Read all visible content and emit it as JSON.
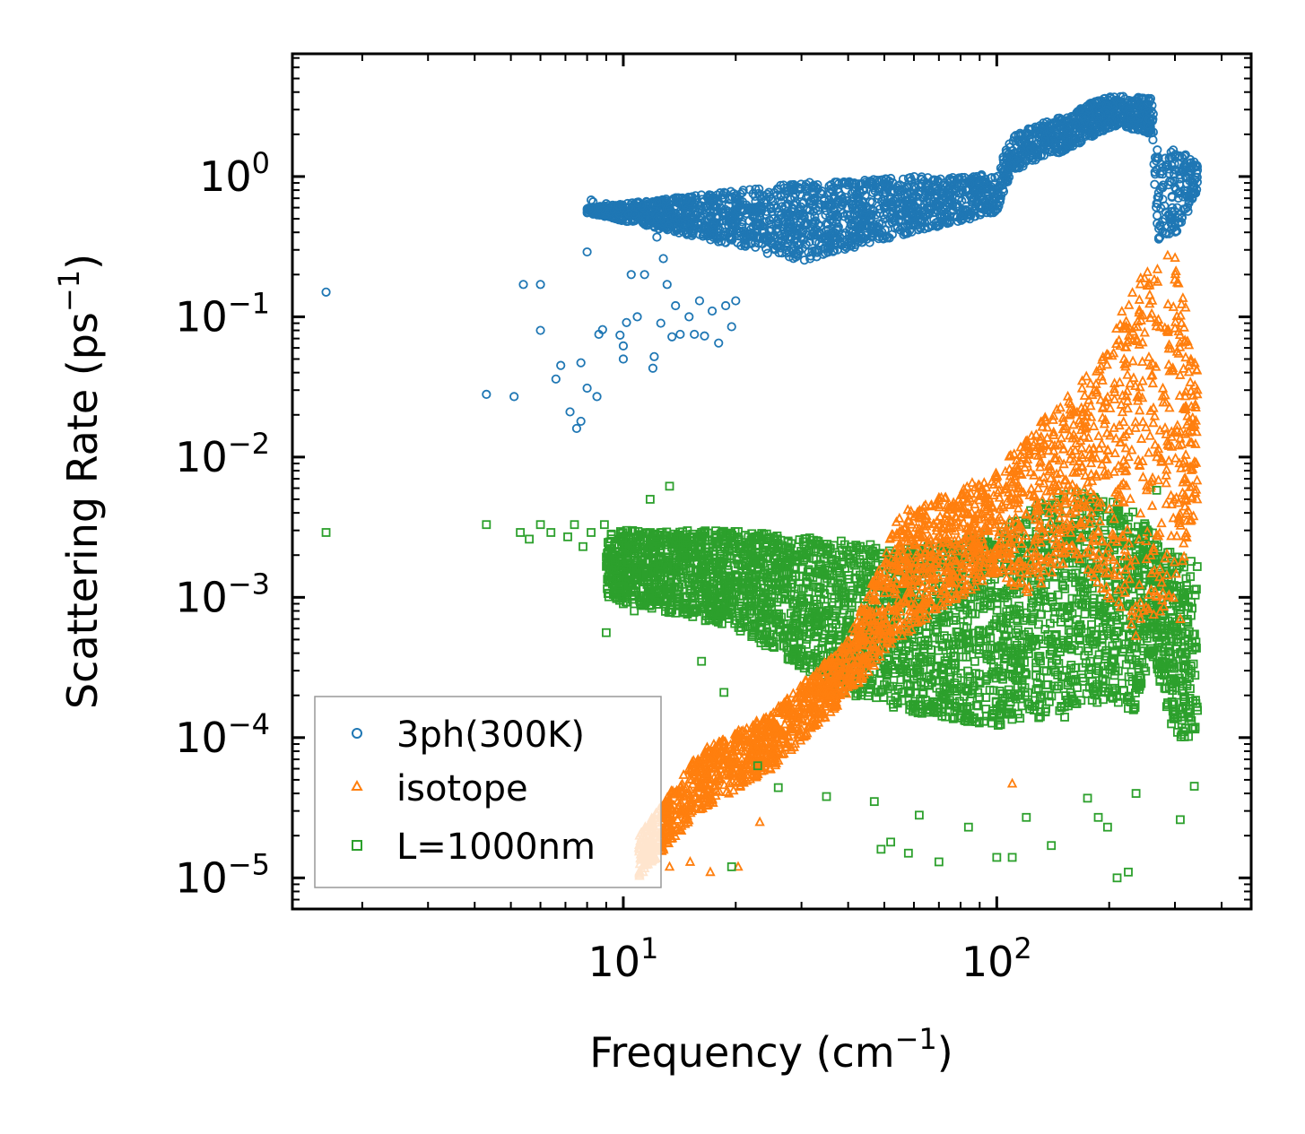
{
  "chart_data": {
    "type": "scatter",
    "title": "",
    "xlabel": "Frequency (cm",
    "xlabel_sup": "−1",
    "xlabel_close": ")",
    "ylabel": "Scattering Rate (ps",
    "ylabel_sup": "−1",
    "ylabel_close": ")",
    "xscale": "log",
    "yscale": "log",
    "xlim": [
      1.3,
      480
    ],
    "ylim": [
      6e-06,
      7.5
    ],
    "xticks": [
      {
        "base": "10",
        "exp": "1",
        "value": 10
      },
      {
        "base": "10",
        "exp": "2",
        "value": 100
      }
    ],
    "yticks": [
      {
        "base": "10",
        "exp": "0",
        "value": 1
      },
      {
        "base": "10",
        "exp": "−1",
        "value": 0.1
      },
      {
        "base": "10",
        "exp": "−2",
        "value": 0.01
      },
      {
        "base": "10",
        "exp": "−3",
        "value": 0.001
      },
      {
        "base": "10",
        "exp": "−4",
        "value": 0.0001
      },
      {
        "base": "10",
        "exp": "−5",
        "value": 1e-05
      }
    ],
    "legend_position": "lower-left",
    "series": [
      {
        "name": "3ph(300K)",
        "marker": "circle",
        "color": "#1f77b4",
        "points": [
          [
            1.6,
            0.15
          ],
          [
            4.3,
            0.028
          ],
          [
            5.1,
            0.027
          ],
          [
            5.4,
            0.17
          ],
          [
            6.0,
            0.17
          ],
          [
            6.0,
            0.08
          ],
          [
            6.6,
            0.036
          ],
          [
            6.8,
            0.045
          ],
          [
            7.2,
            0.021
          ],
          [
            7.5,
            0.016
          ],
          [
            7.7,
            0.018
          ],
          [
            7.7,
            0.047
          ],
          [
            8.0,
            0.031
          ],
          [
            8.0,
            0.29
          ],
          [
            8.2,
            0.68
          ],
          [
            8.3,
            0.66
          ],
          [
            8.5,
            0.027
          ],
          [
            8.6,
            0.075
          ],
          [
            8.8,
            0.081
          ],
          [
            9.0,
            0.64
          ],
          [
            9.2,
            0.56
          ],
          [
            9.6,
            0.58
          ],
          [
            9.7,
            0.62
          ],
          [
            9.8,
            0.074
          ],
          [
            10.0,
            0.05
          ],
          [
            10.0,
            0.062
          ],
          [
            10.2,
            0.091
          ],
          [
            10.5,
            0.2
          ],
          [
            10.9,
            0.1
          ],
          [
            11.4,
            0.2
          ],
          [
            12.0,
            0.043
          ],
          [
            12.1,
            0.052
          ],
          [
            12.3,
            0.37
          ],
          [
            12.6,
            0.09
          ],
          [
            12.8,
            0.26
          ],
          [
            13.1,
            0.17
          ],
          [
            13.5,
            0.072
          ],
          [
            13.8,
            0.12
          ],
          [
            14.2,
            0.075
          ],
          [
            15.0,
            0.1
          ],
          [
            15.5,
            0.075
          ],
          [
            16.0,
            0.13
          ],
          [
            16.5,
            0.073
          ],
          [
            17.3,
            0.11
          ],
          [
            18.0,
            0.065
          ],
          [
            18.8,
            0.12
          ],
          [
            19.5,
            0.085
          ],
          [
            20.0,
            0.13
          ]
        ]
      },
      {
        "name": "isotope",
        "marker": "triangle",
        "color": "#ff7f0e",
        "points": [
          [
            11.3,
            1.1e-05
          ],
          [
            12.4,
            1.8e-05
          ],
          [
            13.3,
            1.2e-05
          ],
          [
            15.1,
            1.3e-05
          ],
          [
            17.1,
            1.1e-05
          ],
          [
            20.3,
            1.2e-05
          ],
          [
            23.2,
            2.5e-05
          ],
          [
            110,
            4.7e-05
          ],
          [
            230,
            0.0008
          ],
          [
            310,
            0.0007
          ],
          [
            315,
            0.009
          ],
          [
            330,
            0.0035
          ],
          [
            344,
            0.005
          ]
        ]
      },
      {
        "name": "L=1000nm",
        "marker": "square",
        "color": "#2ca02c",
        "points": [
          [
            1.6,
            0.0029
          ],
          [
            4.3,
            0.0033
          ],
          [
            5.3,
            0.0029
          ],
          [
            5.6,
            0.0026
          ],
          [
            6.0,
            0.0033
          ],
          [
            6.4,
            0.0029
          ],
          [
            7.1,
            0.0027
          ],
          [
            7.4,
            0.0033
          ],
          [
            7.8,
            0.0023
          ],
          [
            8.2,
            0.0029
          ],
          [
            8.9,
            0.0033
          ],
          [
            9.0,
            0.00056
          ],
          [
            9.5,
            0.0017
          ],
          [
            10.0,
            0.0009
          ],
          [
            10.7,
            0.0008
          ],
          [
            11.8,
            0.005
          ],
          [
            13.3,
            0.0062
          ],
          [
            16.2,
            0.00035
          ],
          [
            18.6,
            0.00021
          ],
          [
            19.5,
            1.2e-05
          ],
          [
            22.9,
            6.3e-05
          ],
          [
            26.0,
            4.4e-05
          ],
          [
            35,
            3.8e-05
          ],
          [
            47,
            3.5e-05
          ],
          [
            49,
            1.6e-05
          ],
          [
            52,
            1.8e-05
          ],
          [
            58,
            1.5e-05
          ],
          [
            62,
            2.8e-05
          ],
          [
            70,
            1.3e-05
          ],
          [
            84,
            2.3e-05
          ],
          [
            100,
            1.4e-05
          ],
          [
            110,
            1.4e-05
          ],
          [
            120,
            2.7e-05
          ],
          [
            140,
            1.7e-05
          ],
          [
            152,
            0.00014
          ],
          [
            175,
            3.7e-05
          ],
          [
            187,
            2.7e-05
          ],
          [
            198,
            2.3e-05
          ],
          [
            210,
            1e-05
          ],
          [
            225,
            1.1e-05
          ],
          [
            236,
            4e-05
          ],
          [
            250,
            0.0027
          ],
          [
            268,
            0.0058
          ],
          [
            310,
            2.6e-05
          ],
          [
            338,
            4.5e-05
          ]
        ]
      }
    ],
    "dense_regions": [
      {
        "series": "3ph(300K)",
        "x": [
          8,
          30,
          60,
          100,
          110,
          150,
          185,
          210,
          260,
          270,
          310,
          345
        ],
        "ylo": [
          0.55,
          0.25,
          0.4,
          0.55,
          1.1,
          1.5,
          2.0,
          2.3,
          2.0,
          0.35,
          0.4,
          0.8
        ],
        "yhi": [
          0.6,
          0.9,
          1.0,
          1.05,
          2.0,
          2.7,
          3.5,
          3.8,
          3.6,
          1.5,
          1.6,
          1.2
        ]
      },
      {
        "series": "isotope",
        "x": [
          11,
          16,
          25,
          40,
          55,
          80,
          100,
          120,
          160,
          200,
          235,
          300,
          345
        ],
        "ylo": [
          1e-05,
          3e-05,
          6e-05,
          0.0002,
          0.0005,
          0.001,
          0.0015,
          0.001,
          0.002,
          0.001,
          0.0005,
          0.001,
          0.005
        ],
        "yhi": [
          2e-05,
          8e-05,
          0.00015,
          0.0005,
          0.004,
          0.006,
          0.008,
          0.015,
          0.03,
          0.06,
          0.22,
          0.3,
          0.04
        ]
      },
      {
        "series": "L=1000nm",
        "x": [
          9,
          20,
          40,
          60,
          100,
          150,
          200,
          235,
          260,
          300,
          345
        ],
        "ylo": [
          0.001,
          0.0006,
          0.0002,
          0.00015,
          0.00012,
          0.00015,
          0.00018,
          0.00015,
          0.0004,
          0.0001,
          0.0001
        ],
        "yhi": [
          0.003,
          0.003,
          0.0025,
          0.0022,
          0.003,
          0.006,
          0.005,
          0.004,
          0.003,
          0.002,
          0.002
        ]
      }
    ]
  }
}
